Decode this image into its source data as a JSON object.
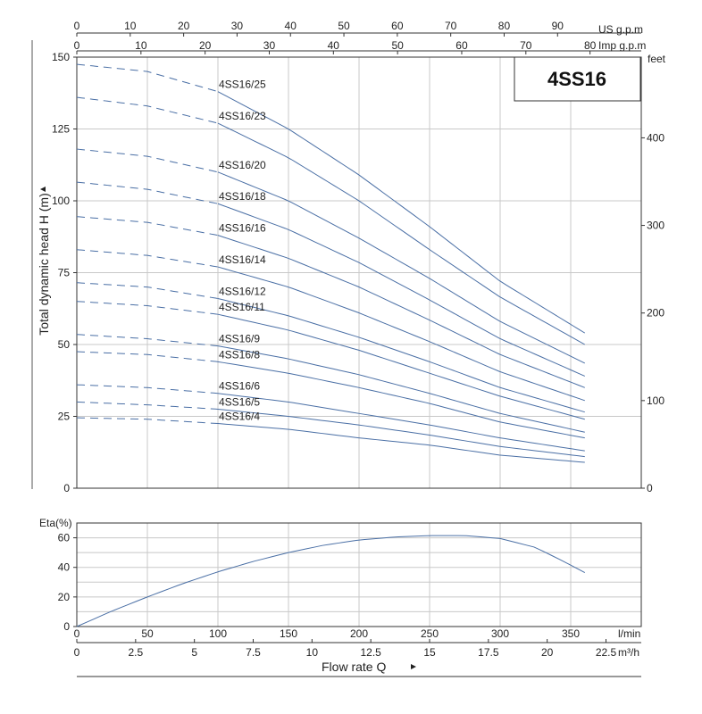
{
  "model_label": "4SS16",
  "head_axis": {
    "title": "Total dynamic head H (m)",
    "min": 0,
    "max": 150,
    "ticks": [
      0,
      25,
      50,
      75,
      100,
      125,
      150
    ]
  },
  "feet_axis": {
    "title": "feet",
    "ticks": [
      0,
      100,
      200,
      300,
      400
    ]
  },
  "eta_axis": {
    "title": "Eta(%)",
    "min": 0,
    "max": 70,
    "ticks": [
      0,
      20,
      40,
      60
    ]
  },
  "flow_axis": {
    "title": "Flow rate Q",
    "lmin_unit": "l/min",
    "lmin_max": 400,
    "lmin_ticks": [
      0,
      50,
      100,
      150,
      200,
      250,
      300,
      350
    ],
    "m3h_unit": "m³/h",
    "m3h_ticks": [
      "0",
      "2.5",
      "5",
      "7.5",
      "10",
      "12.5",
      "15",
      "17.5",
      "20",
      "22.5"
    ],
    "usgpm_unit": "US g.p.m",
    "usgpm_ticks": [
      0,
      10,
      20,
      30,
      40,
      50,
      60,
      70,
      80,
      90
    ],
    "impgpm_unit": "Imp g.p.m",
    "impgpm_ticks": [
      0,
      10,
      20,
      30,
      40,
      50,
      60,
      70,
      80
    ]
  },
  "chart_data": [
    {
      "type": "line",
      "xlabel": "Flow rate Q (l/min)",
      "ylabel": "Total dynamic head H (m)",
      "xlim": [
        0,
        400
      ],
      "ylim": [
        0,
        150
      ],
      "recommended_range_start_lmin": 100,
      "x": [
        0,
        50,
        100,
        150,
        200,
        250,
        300,
        360
      ],
      "series": [
        {
          "name": "4SS16/25",
          "values": [
            147.5,
            145.0,
            138.0,
            125.0,
            109.0,
            91.0,
            72.0,
            54.0
          ]
        },
        {
          "name": "4SS16/23",
          "values": [
            136.0,
            133.0,
            127.0,
            115.0,
            100.0,
            83.0,
            66.5,
            50.0
          ]
        },
        {
          "name": "4SS16/20",
          "values": [
            118.0,
            115.5,
            110.0,
            100.0,
            87.0,
            73.0,
            58.0,
            43.5
          ]
        },
        {
          "name": "4SS16/18",
          "values": [
            106.5,
            104.0,
            99.0,
            90.0,
            78.5,
            65.5,
            52.0,
            39.0
          ]
        },
        {
          "name": "4SS16/16",
          "values": [
            94.5,
            92.5,
            88.0,
            80.0,
            70.0,
            58.5,
            46.5,
            35.0
          ]
        },
        {
          "name": "4SS16/14",
          "values": [
            83.0,
            81.0,
            77.0,
            70.0,
            61.0,
            51.0,
            40.5,
            30.5
          ]
        },
        {
          "name": "4SS16/12",
          "values": [
            71.5,
            70.0,
            66.0,
            60.0,
            52.5,
            44.0,
            35.0,
            26.5
          ]
        },
        {
          "name": "4SS16/11",
          "values": [
            65.0,
            63.5,
            60.5,
            55.0,
            48.0,
            40.0,
            32.0,
            24.0
          ]
        },
        {
          "name": "4SS16/9",
          "values": [
            53.5,
            52.0,
            49.5,
            45.0,
            39.5,
            33.0,
            26.0,
            19.5
          ]
        },
        {
          "name": "4SS16/8",
          "values": [
            47.5,
            46.5,
            44.0,
            40.0,
            35.0,
            29.5,
            23.0,
            17.5
          ]
        },
        {
          "name": "4SS16/6",
          "values": [
            36.0,
            35.0,
            33.0,
            30.0,
            26.0,
            22.0,
            17.5,
            13.0
          ]
        },
        {
          "name": "4SS16/5",
          "values": [
            30.0,
            29.0,
            27.5,
            25.0,
            22.0,
            18.5,
            14.5,
            11.0
          ]
        },
        {
          "name": "4SS16/4",
          "values": [
            24.5,
            24.0,
            22.5,
            20.5,
            17.5,
            15.0,
            11.5,
            9.0
          ]
        }
      ]
    },
    {
      "type": "line",
      "xlabel": "Flow rate Q (l/min)",
      "ylabel": "Eta(%)",
      "xlim": [
        0,
        400
      ],
      "ylim": [
        0,
        70
      ],
      "series": [
        {
          "name": "",
          "x": [
            0,
            25,
            50,
            75,
            100,
            125,
            150,
            175,
            200,
            225,
            250,
            275,
            300,
            325,
            345,
            360
          ],
          "values": [
            0,
            10.5,
            20.0,
            29.0,
            37.0,
            44.0,
            50.0,
            55.0,
            58.5,
            60.5,
            61.5,
            61.5,
            59.5,
            53.5,
            44.0,
            36.5
          ]
        }
      ]
    }
  ]
}
